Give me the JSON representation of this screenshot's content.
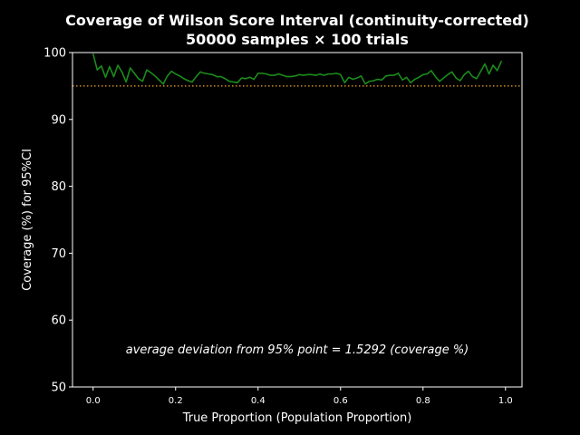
{
  "chart_data": {
    "type": "line",
    "title_line1": "Coverage of Wilson Score Interval (continuity-corrected)",
    "title_line2": "50000 samples × 100 trials",
    "xlabel": "True Proportion (Population Proportion)",
    "ylabel": "Coverage (%) for 95%CI",
    "xlim": [
      -0.05,
      1.04
    ],
    "ylim": [
      50,
      100
    ],
    "x_ticks": [
      0.0,
      0.2,
      0.4,
      0.6,
      0.8,
      1.0
    ],
    "x_tick_labels": [
      "0.0",
      "0.2",
      "0.4",
      "0.6",
      "0.8",
      "1.0"
    ],
    "y_ticks": [
      50,
      60,
      70,
      80,
      90,
      100
    ],
    "y_tick_labels": [
      "50",
      "60",
      "70",
      "80",
      "90",
      "100"
    ],
    "grid": false,
    "annotation": "average deviation from 95% point = 1.5292 (coverage %)",
    "reference_line": {
      "y": 95,
      "color": "#f5a623",
      "style": "dotted"
    },
    "series": [
      {
        "color": "#1a8c1a",
        "x": [
          0.0,
          0.01,
          0.02,
          0.03,
          0.04,
          0.05,
          0.06,
          0.07,
          0.08,
          0.09,
          0.1,
          0.11,
          0.12,
          0.13,
          0.14,
          0.15,
          0.16,
          0.17,
          0.18,
          0.19,
          0.2,
          0.21,
          0.22,
          0.23,
          0.24,
          0.25,
          0.26,
          0.27,
          0.28,
          0.29,
          0.3,
          0.31,
          0.32,
          0.33,
          0.34,
          0.35,
          0.36,
          0.37,
          0.38,
          0.39,
          0.4,
          0.41,
          0.42,
          0.43,
          0.44,
          0.45,
          0.46,
          0.47,
          0.48,
          0.49,
          0.5,
          0.51,
          0.52,
          0.53,
          0.54,
          0.55,
          0.56,
          0.57,
          0.58,
          0.59,
          0.6,
          0.61,
          0.62,
          0.63,
          0.64,
          0.65,
          0.66,
          0.67,
          0.68,
          0.69,
          0.7,
          0.71,
          0.72,
          0.73,
          0.74,
          0.75,
          0.76,
          0.77,
          0.78,
          0.79,
          0.8,
          0.81,
          0.82,
          0.83,
          0.84,
          0.85,
          0.86,
          0.87,
          0.88,
          0.89,
          0.9,
          0.91,
          0.92,
          0.93,
          0.94,
          0.95,
          0.96,
          0.97,
          0.98,
          0.99
        ],
        "y": [
          99.8,
          97.4,
          98.0,
          96.3,
          97.9,
          96.4,
          98.1,
          97.1,
          95.6,
          97.7,
          96.9,
          96.1,
          95.7,
          97.4,
          97.0,
          96.5,
          95.9,
          95.3,
          96.5,
          97.2,
          96.8,
          96.5,
          96.1,
          95.8,
          95.6,
          96.4,
          97.1,
          96.9,
          96.8,
          96.7,
          96.4,
          96.4,
          96.1,
          95.7,
          95.6,
          95.5,
          96.2,
          96.1,
          96.3,
          96.0,
          96.9,
          96.9,
          96.8,
          96.6,
          96.6,
          96.8,
          96.6,
          96.4,
          96.4,
          96.5,
          96.7,
          96.6,
          96.7,
          96.7,
          96.6,
          96.8,
          96.6,
          96.8,
          96.8,
          96.9,
          96.7,
          95.5,
          96.3,
          96.0,
          96.2,
          96.5,
          95.3,
          95.7,
          95.8,
          96.0,
          95.9,
          96.5,
          96.6,
          96.6,
          96.9,
          95.9,
          96.3,
          95.5,
          96.0,
          96.3,
          96.7,
          96.8,
          97.3,
          96.4,
          95.7,
          96.2,
          96.7,
          97.1,
          96.2,
          95.8,
          96.7,
          97.2,
          96.4,
          96.1,
          97.2,
          98.3,
          96.8,
          98.1,
          97.3,
          98.7
        ]
      }
    ]
  }
}
